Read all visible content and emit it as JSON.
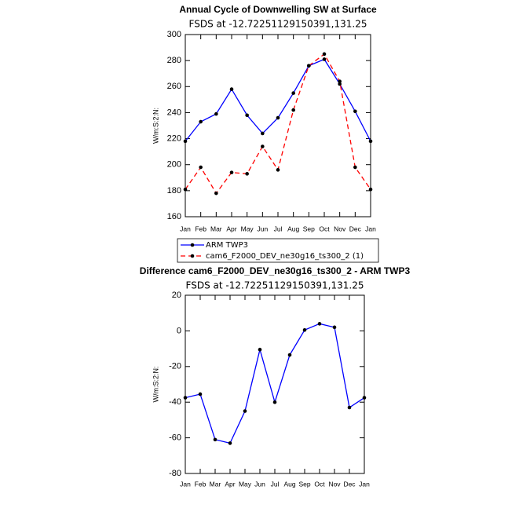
{
  "chart_data": [
    {
      "type": "line",
      "title": "Annual Cycle of Downwelling SW at Surface",
      "subtitle": "FSDS at -12.72251129150391,131.25",
      "y_label": "W/m:S:2:N:",
      "categories": [
        "Jan",
        "Feb",
        "Mar",
        "Apr",
        "May",
        "Jun",
        "Jul",
        "Aug",
        "Sep",
        "Oct",
        "Nov",
        "Dec",
        "Jan"
      ],
      "series": [
        {
          "name": "ARM TWP3",
          "color": "#0000ff",
          "line_style": "solid",
          "values": [
            218,
            233,
            239,
            258,
            238,
            224,
            236,
            255,
            276,
            281,
            262,
            241,
            218
          ]
        },
        {
          "name": "cam6_F2000_DEV_ne30g16_ts300_2 (1)",
          "color": "#ff0000",
          "line_style": "dashed",
          "values": [
            181,
            198,
            178,
            194,
            193,
            214,
            196,
            242,
            276,
            285,
            264,
            198,
            181
          ]
        }
      ],
      "ylim": [
        160,
        300
      ],
      "yticks": [
        160,
        180,
        200,
        220,
        240,
        260,
        280,
        300
      ],
      "legend": "bottom"
    },
    {
      "type": "line",
      "title": "Difference cam6_F2000_DEV_ne30g16_ts300_2 - ARM TWP3",
      "subtitle": "FSDS at -12.72251129150391,131.25",
      "y_label": "W/m:S:2:N:",
      "categories": [
        "Jan",
        "Feb",
        "Mar",
        "Apr",
        "May",
        "Jun",
        "Jul",
        "Aug",
        "Sep",
        "Oct",
        "Nov",
        "Dec",
        "Jan"
      ],
      "color": "#0000ff",
      "line_style": "solid",
      "values": [
        -37.5,
        -35.5,
        -61,
        -63,
        -45,
        -10.5,
        -40,
        -13.5,
        0.5,
        4,
        2,
        -43,
        -37.5
      ],
      "ylim": [
        -80,
        20
      ],
      "yticks": [
        -80,
        -60,
        -40,
        -20,
        0,
        20
      ]
    }
  ]
}
